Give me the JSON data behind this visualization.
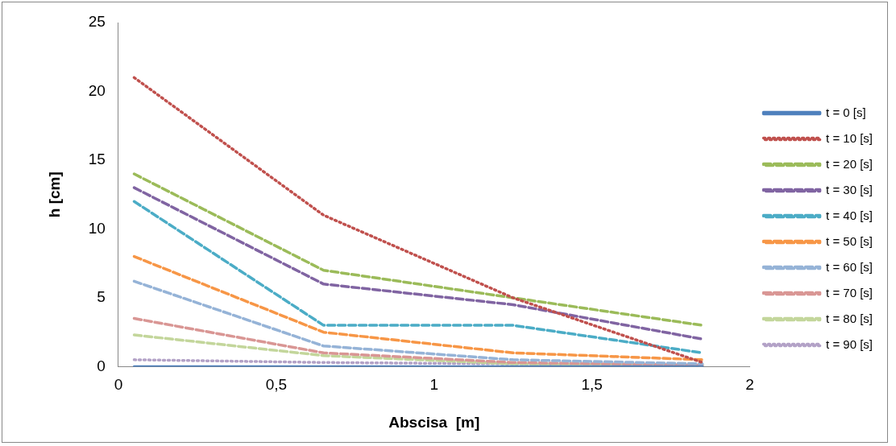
{
  "chart_data": {
    "type": "line",
    "xlabel": "Abscisa  [m]",
    "ylabel": "h [cm]",
    "xlim": [
      0,
      2
    ],
    "xticks": [
      0,
      {
        "value": 0.5,
        "label": "0,5"
      },
      1,
      {
        "value": 1.5,
        "label": "1,5"
      },
      2
    ],
    "ylim": [
      0,
      25
    ],
    "yticks": [
      0,
      5,
      10,
      15,
      20,
      25
    ],
    "grid": false,
    "legend": "right",
    "marker": "none",
    "x": [
      0.05,
      0.65,
      1.25,
      1.85
    ],
    "series": [
      {
        "name": "t = 0 [s]",
        "color": "#4f81bd",
        "line_style": "solid",
        "values": [
          0,
          0,
          0,
          0
        ]
      },
      {
        "name": "t = 10 [s]",
        "color": "#c0504d",
        "line_style": "dotted",
        "values": [
          21,
          11,
          5,
          0.3
        ]
      },
      {
        "name": "t = 20 [s]",
        "color": "#9bbb59",
        "line_style": "dashed",
        "values": [
          14,
          7,
          5,
          3
        ]
      },
      {
        "name": "t = 30 [s]",
        "color": "#8064a2",
        "line_style": "dashed",
        "values": [
          13,
          6,
          4.5,
          2
        ]
      },
      {
        "name": "t = 40 [s]",
        "color": "#4bacc6",
        "line_style": "dashed",
        "values": [
          12,
          3,
          3,
          1
        ]
      },
      {
        "name": "t = 50 [s]",
        "color": "#f79646",
        "line_style": "dashed",
        "values": [
          8,
          2.5,
          1,
          0.5
        ]
      },
      {
        "name": "t = 60 [s]",
        "color": "#95b3d7",
        "line_style": "dashed",
        "values": [
          6.2,
          1.5,
          0.5,
          0.2
        ]
      },
      {
        "name": "t = 70 [s]",
        "color": "#d99694",
        "line_style": "dashed",
        "values": [
          3.5,
          1,
          0.3,
          0.1
        ]
      },
      {
        "name": "t = 80 [s]",
        "color": "#c3d69b",
        "line_style": "dashed",
        "values": [
          2.3,
          0.8,
          0.2,
          0.1
        ]
      },
      {
        "name": "t = 90 [s]",
        "color": "#b3a2c7",
        "line_style": "dotted",
        "values": [
          0.5,
          0.3,
          0.2,
          0.1
        ]
      }
    ]
  }
}
